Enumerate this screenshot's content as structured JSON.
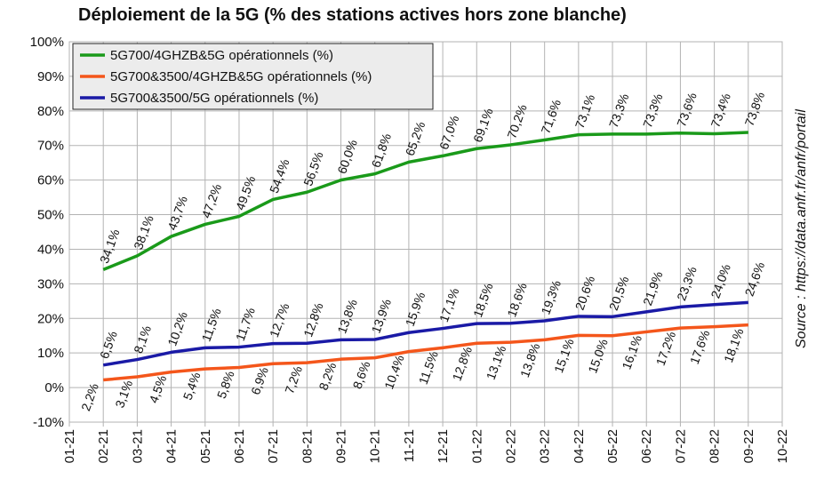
{
  "chart_data": {
    "type": "line",
    "title": "Déploiement de la 5G (% des stations actives hors zone blanche)",
    "source": "Source : https://data.anfr.fr/anfr/portail",
    "categories": [
      "01-21",
      "02-21",
      "03-21",
      "04-21",
      "05-21",
      "06-21",
      "07-21",
      "08-21",
      "09-21",
      "10-21",
      "11-21",
      "12-21",
      "01-22",
      "02-22",
      "03-22",
      "04-22",
      "05-22",
      "06-22",
      "07-22",
      "08-22",
      "09-22",
      "10-22"
    ],
    "y_ticks": [
      "100%",
      "90%",
      "80%",
      "70%",
      "60%",
      "50%",
      "40%",
      "30%",
      "20%",
      "10%",
      "0%",
      "-10%"
    ],
    "ylim": [
      -10,
      100
    ],
    "grid": true,
    "legend_position": "top-left",
    "series": [
      {
        "name": "5G700/4GHZB&5G opérationnels (%)",
        "color": "#1a9a1a",
        "values": [
          null,
          34.1,
          38.1,
          43.7,
          47.2,
          49.5,
          54.4,
          56.5,
          60.0,
          61.8,
          65.2,
          67.0,
          69.1,
          70.2,
          71.6,
          73.1,
          73.3,
          73.3,
          73.6,
          73.4,
          73.8,
          null
        ],
        "labels": [
          null,
          "34,1%",
          "38,1%",
          "43,7%",
          "47,2%",
          "49,5%",
          "54,4%",
          "56,5%",
          "60,0%",
          "61,8%",
          "65,2%",
          "67,0%",
          "69,1%",
          "70,2%",
          "71,6%",
          "73,1%",
          "73,3%",
          "73,3%",
          "73,6%",
          "73,4%",
          "73,8%",
          null
        ],
        "label_side": "above"
      },
      {
        "name": "5G700&3500/4GHZB&5G opérationnels (%)",
        "color": "#f4561b",
        "values": [
          null,
          2.2,
          3.1,
          4.5,
          5.4,
          5.8,
          6.9,
          7.2,
          8.2,
          8.6,
          10.4,
          11.5,
          12.8,
          13.1,
          13.8,
          15.1,
          15.0,
          16.1,
          17.2,
          17.6,
          18.1,
          null
        ],
        "labels": [
          null,
          "2,2%",
          "3,1%",
          "4,5%",
          "5,4%",
          "5,8%",
          "6,9%",
          "7,2%",
          "8,2%",
          "8,6%",
          "10,4%",
          "11,5%",
          "12,8%",
          "13,1%",
          "13,8%",
          "15,1%",
          "15,0%",
          "16,1%",
          "17,2%",
          "17,6%",
          "18,1%",
          null
        ],
        "label_side": "below"
      },
      {
        "name": "5G700&3500/5G opérationnels (%)",
        "color": "#1a1aa6",
        "values": [
          null,
          6.5,
          8.1,
          10.2,
          11.5,
          11.7,
          12.7,
          12.8,
          13.8,
          13.9,
          15.9,
          17.1,
          18.5,
          18.6,
          19.3,
          20.6,
          20.5,
          21.9,
          23.3,
          24.0,
          24.6,
          null
        ],
        "labels": [
          null,
          "6,5%",
          "8,1%",
          "10,2%",
          "11,5%",
          "11,7%",
          "12,7%",
          "12,8%",
          "13,8%",
          "13,9%",
          "15,9%",
          "17,1%",
          "18,5%",
          "18,6%",
          "19,3%",
          "20,6%",
          "20,5%",
          "21,9%",
          "23,3%",
          "24,0%",
          "24,6%",
          null
        ],
        "label_side": "above"
      }
    ]
  }
}
